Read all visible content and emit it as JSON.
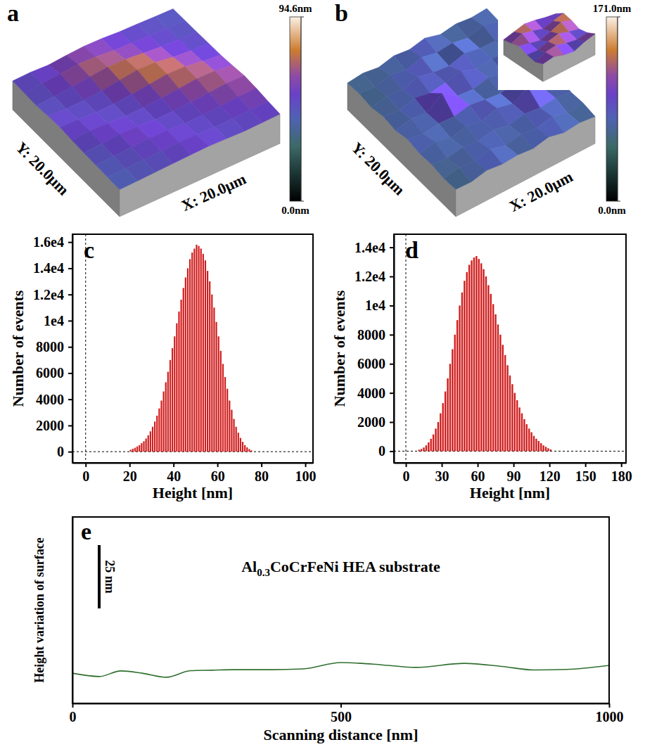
{
  "chart_data": [
    {
      "type": "surface",
      "label": "a",
      "x_label": "X: 20.0μm",
      "y_label": "Y: 20.0μm",
      "heights": [
        [
          50,
          52,
          48,
          55,
          60,
          58,
          52,
          50,
          47,
          45
        ],
        [
          48,
          55,
          62,
          70,
          66,
          58,
          54,
          51,
          49,
          46
        ],
        [
          46,
          50,
          58,
          66,
          74,
          72,
          63,
          55,
          50,
          48
        ],
        [
          52,
          48,
          50,
          56,
          68,
          78,
          75,
          62,
          54,
          50
        ],
        [
          55,
          53,
          49,
          50,
          57,
          66,
          76,
          73,
          60,
          52
        ],
        [
          50,
          57,
          54,
          49,
          51,
          58,
          64,
          72,
          70,
          58
        ],
        [
          47,
          52,
          58,
          56,
          50,
          52,
          57,
          62,
          68,
          66
        ],
        [
          45,
          48,
          53,
          57,
          55,
          50,
          52,
          56,
          60,
          63
        ],
        [
          44,
          46,
          49,
          52,
          56,
          54,
          50,
          52,
          54,
          57
        ],
        [
          42,
          44,
          47,
          50,
          53,
          55,
          52,
          49,
          51,
          53
        ]
      ],
      "colorbar": {
        "range": [
          0,
          94.6
        ],
        "ticks": [
          {
            "value": 0,
            "label": "0.0nm"
          },
          {
            "value": 94.6,
            "label": "94.6nm"
          }
        ]
      }
    },
    {
      "type": "surface",
      "label": "b",
      "x_label": "X: 20.0μm",
      "y_label": "Y: 20.0μm",
      "heights": [
        [
          60,
          72,
          55,
          80,
          66,
          90,
          58,
          75,
          62,
          70
        ],
        [
          68,
          58,
          85,
          62,
          95,
          70,
          82,
          60,
          88,
          65
        ],
        [
          55,
          78,
          64,
          100,
          72,
          60,
          92,
          70,
          66,
          84
        ],
        [
          74,
          62,
          90,
          68,
          84,
          110,
          66,
          80,
          72,
          60
        ],
        [
          60,
          86,
          70,
          150,
          76,
          64,
          88,
          62,
          96,
          70
        ],
        [
          82,
          64,
          78,
          70,
          92,
          74,
          60,
          84,
          68,
          78
        ],
        [
          66,
          90,
          60,
          84,
          66,
          98,
          72,
          130,
          64,
          88
        ],
        [
          72,
          58,
          80,
          64,
          88,
          62,
          86,
          70,
          82,
          66
        ],
        [
          58,
          76,
          66,
          92,
          60,
          80,
          68,
          94,
          60,
          74
        ],
        [
          64,
          60,
          84,
          70,
          78,
          66,
          90,
          64,
          76,
          62
        ]
      ],
      "inset_heights": [
        [
          80,
          110,
          140,
          120,
          90,
          70
        ],
        [
          100,
          150,
          120,
          80,
          110,
          140
        ],
        [
          130,
          100,
          70,
          110,
          160,
          120
        ],
        [
          90,
          80,
          120,
          150,
          110,
          80
        ],
        [
          70,
          120,
          140,
          100,
          80,
          100
        ],
        [
          110,
          130,
          90,
          70,
          120,
          150
        ]
      ],
      "colorbar": {
        "range": [
          0,
          171.0
        ],
        "ticks": [
          {
            "value": 0,
            "label": "0.0nm"
          },
          {
            "value": 171.0,
            "label": "171.0nm"
          }
        ]
      }
    },
    {
      "type": "histogram",
      "label": "c",
      "x_label": "Height [nm]",
      "y_label": "Number of events",
      "color": "#d01c1c",
      "bins": [
        20,
        21,
        22,
        23,
        24,
        25,
        26,
        27,
        28,
        29,
        30,
        31,
        32,
        33,
        34,
        35,
        36,
        37,
        38,
        39,
        40,
        41,
        42,
        43,
        44,
        45,
        46,
        47,
        48,
        49,
        50,
        51,
        52,
        53,
        54,
        55,
        56,
        57,
        58,
        59,
        60,
        61,
        62,
        63,
        64,
        65,
        66,
        67,
        68,
        69,
        70,
        71,
        72,
        73,
        74,
        75,
        76
      ],
      "values": [
        150,
        220,
        300,
        400,
        500,
        650,
        800,
        1000,
        1250,
        1550,
        1900,
        2300,
        2750,
        3300,
        3900,
        4600,
        5300,
        6100,
        7000,
        7900,
        8800,
        9800,
        10700,
        11600,
        12500,
        13300,
        14000,
        14700,
        15200,
        15500,
        15800,
        15700,
        15500,
        15100,
        14600,
        13800,
        13000,
        12000,
        11000,
        9900,
        8800,
        7700,
        6700,
        5700,
        4800,
        3900,
        3200,
        2500,
        1900,
        1450,
        1050,
        750,
        500,
        330,
        200,
        100
      ],
      "xlim": [
        -6,
        103.5
      ],
      "xticks": [
        0,
        20,
        40,
        60,
        80,
        100
      ],
      "ylim": [
        -850,
        16600
      ],
      "yticks": [
        0,
        2000,
        4000,
        6000,
        8000,
        {
          "value": 10000,
          "label": "1e4"
        },
        {
          "value": 12000,
          "label": "1.2e4"
        },
        {
          "value": 14000,
          "label": "1.4e4"
        },
        {
          "value": 16000,
          "label": "1.6e4"
        }
      ]
    },
    {
      "type": "histogram",
      "label": "d",
      "x_label": "Height [nm]",
      "y_label": "Number of events",
      "color": "#d01c1c",
      "bins": [
        10,
        12,
        14,
        16,
        18,
        20,
        22,
        24,
        26,
        28,
        30,
        32,
        34,
        36,
        38,
        40,
        42,
        44,
        46,
        48,
        50,
        52,
        54,
        56,
        58,
        60,
        62,
        64,
        66,
        68,
        70,
        72,
        74,
        76,
        78,
        80,
        82,
        84,
        86,
        88,
        90,
        92,
        94,
        96,
        98,
        100,
        102,
        104,
        106,
        108,
        110,
        112,
        114,
        116,
        118,
        120,
        122
      ],
      "values": [
        100,
        150,
        250,
        400,
        600,
        850,
        1150,
        1550,
        2000,
        2600,
        3300,
        4100,
        5000,
        6000,
        7000,
        8000,
        9000,
        10000,
        10900,
        11700,
        12300,
        12800,
        13100,
        13300,
        13400,
        13200,
        12900,
        12500,
        12000,
        11400,
        10800,
        10100,
        9400,
        8700,
        8000,
        7300,
        6600,
        5900,
        5200,
        4600,
        4000,
        3500,
        3000,
        2600,
        2200,
        1850,
        1550,
        1300,
        1050,
        850,
        700,
        550,
        400,
        300,
        200,
        120
      ],
      "xlim": [
        -10,
        184
      ],
      "xticks": [
        0,
        30,
        60,
        90,
        120,
        150,
        180
      ],
      "ylim": [
        -800,
        14900
      ],
      "yticks": [
        0,
        2000,
        4000,
        6000,
        8000,
        {
          "value": 10000,
          "label": "1e4"
        },
        {
          "value": 12000,
          "label": "1.2e4"
        },
        {
          "value": 14000,
          "label": "1.4e4"
        }
      ]
    },
    {
      "type": "line",
      "label": "e",
      "x_label": "Scanning distance [nm]",
      "y_label": "Height variation of surface",
      "annotation": "Al0.3CoCrFeNi HEA substrate",
      "color": "#2f6f2f",
      "scale_bar": {
        "value": 25,
        "label": "25 nm"
      },
      "x": [
        0,
        50,
        90,
        130,
        175,
        220,
        260,
        300,
        370,
        430,
        500,
        560,
        640,
        730,
        800,
        860,
        920,
        1000
      ],
      "values": [
        11.9,
        10.6,
        12.8,
        11.9,
        10.3,
        12.9,
        13.1,
        13.3,
        13.3,
        13.6,
        16.1,
        15.5,
        14.2,
        15.8,
        14.6,
        13.2,
        13.4,
        15.0
      ],
      "xlim": [
        0,
        1000
      ],
      "xticks": [
        0,
        500,
        1000
      ],
      "ylim": [
        0,
        73.6
      ],
      "tick_labels": "x"
    }
  ]
}
